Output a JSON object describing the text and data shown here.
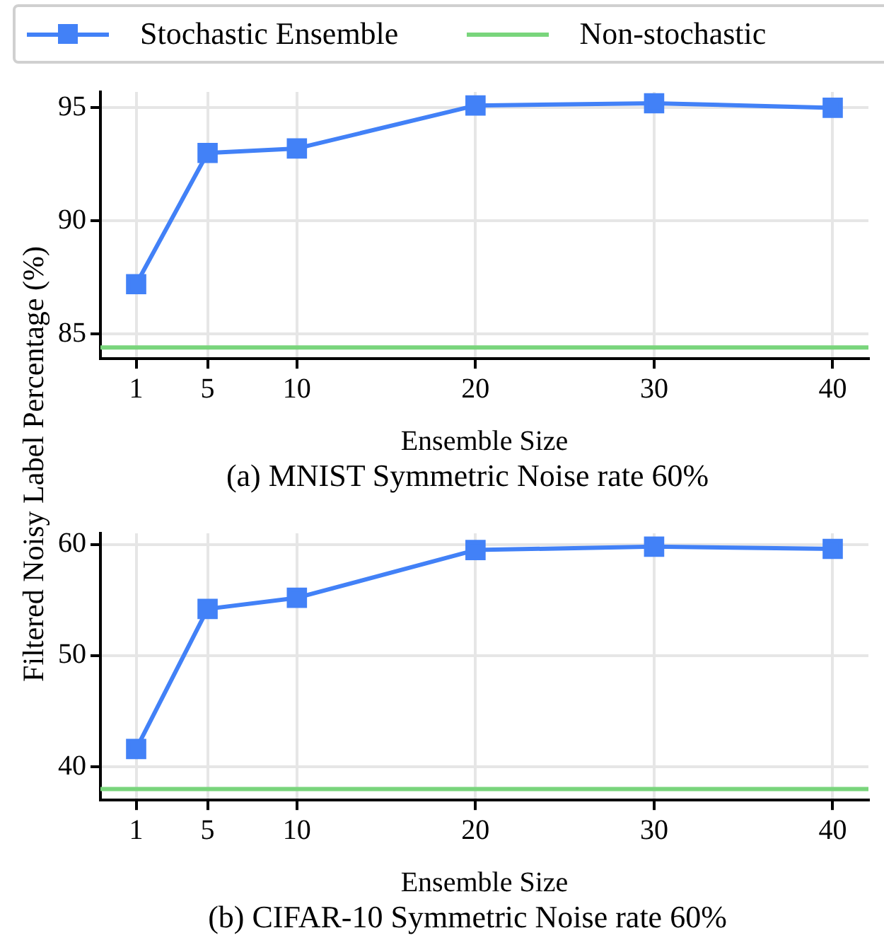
{
  "chart_data": [
    {
      "type": "line",
      "title": "(a) MNIST Symmetric Noise rate 60%",
      "xlabel": "Ensemble Size",
      "ylabel": "Filtered Noisy Label Percentage (%)",
      "x": [
        1,
        5,
        10,
        20,
        30,
        40
      ],
      "series": [
        {
          "name": "Stochastic Ensemble",
          "color": "#4281f7",
          "values": [
            87.2,
            93.0,
            93.2,
            95.1,
            95.2,
            95.0
          ],
          "marker": "square"
        }
      ],
      "ref_lines": [
        {
          "axis": "y",
          "value": 84.4,
          "label": "Non-stochastic",
          "color": "#79d57c",
          "line_style": "solid"
        }
      ],
      "xlim": [
        -1,
        42
      ],
      "xticks": [
        1,
        5,
        10,
        20,
        30,
        40
      ],
      "ylim": [
        83.9,
        95.7
      ],
      "yticks": [
        85,
        90,
        95
      ],
      "grid": true,
      "legend": "top",
      "line_style": "solid"
    },
    {
      "type": "line",
      "title": "(b) CIFAR-10 Symmetric Noise rate 60%",
      "xlabel": "Ensemble Size",
      "x": [
        1,
        5,
        10,
        20,
        30,
        40
      ],
      "series": [
        {
          "color": "#4281f7",
          "values": [
            41.6,
            54.2,
            55.2,
            59.5,
            59.8,
            59.6
          ],
          "marker": "square"
        }
      ],
      "ref_lines": [
        {
          "axis": "y",
          "value": 38.0,
          "color": "#79d57c",
          "line_style": "solid"
        }
      ],
      "xlim": [
        -1,
        42
      ],
      "xticks": [
        1,
        5,
        10,
        20,
        30,
        40
      ],
      "ylim": [
        37.0,
        61.0
      ],
      "yticks": [
        40,
        50,
        60
      ],
      "grid": true,
      "line_style": "solid"
    }
  ]
}
